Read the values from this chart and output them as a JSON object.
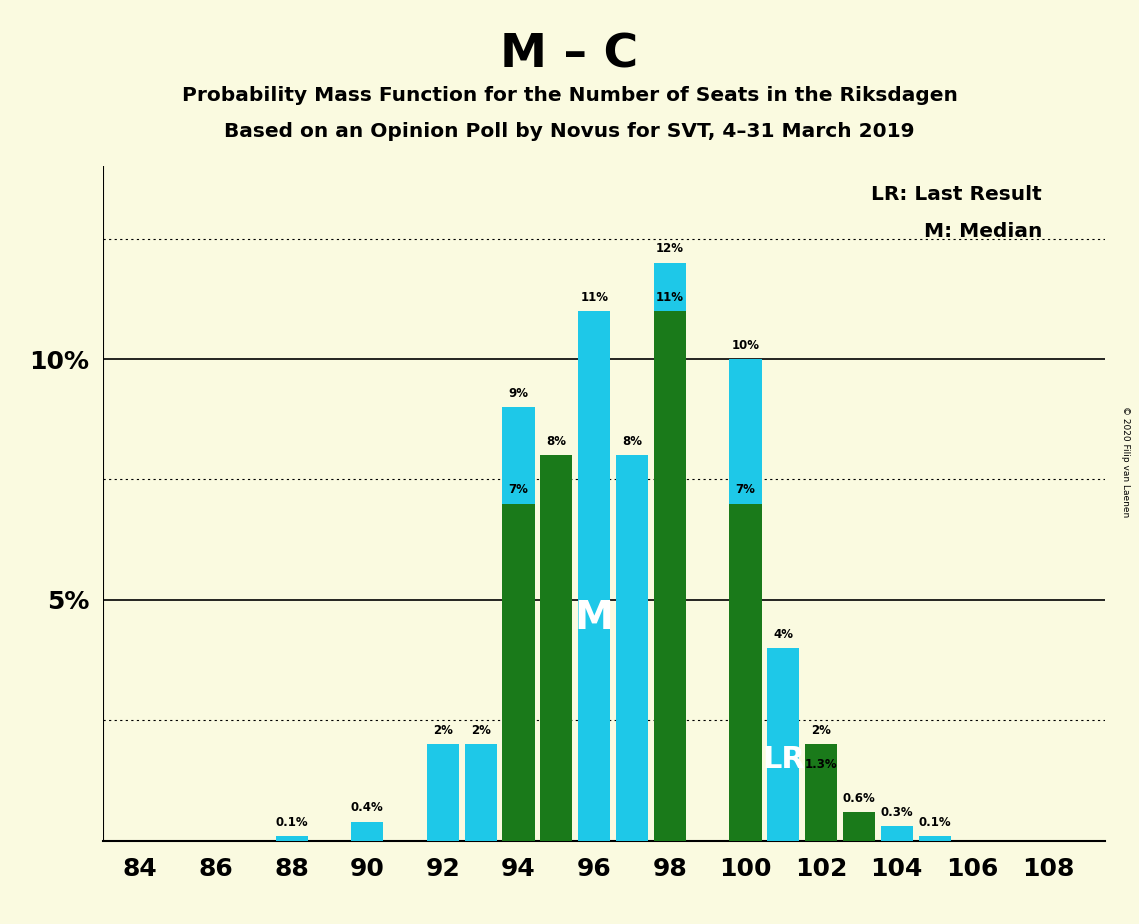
{
  "title": "M – C",
  "subtitle1": "Probability Mass Function for the Number of Seats in the Riksdagen",
  "subtitle2": "Based on an Opinion Poll by Novus for SVT, 4–31 March 2019",
  "copyright": "© 2020 Filip van Laenen",
  "legend1": "LR: Last Result",
  "legend2": "M: Median",
  "median_seat": 96,
  "lr_seat": 101,
  "cyan_seats": [
    84,
    86,
    88,
    90,
    92,
    93,
    94,
    96,
    97,
    98,
    100,
    101,
    102,
    104,
    105,
    106,
    108
  ],
  "cyan_values": [
    0.0,
    0.0,
    0.1,
    0.4,
    2.0,
    2.0,
    9.0,
    11.0,
    8.0,
    12.0,
    10.0,
    4.0,
    1.3,
    0.3,
    0.1,
    0.0,
    0.0
  ],
  "green_seats": [
    84,
    86,
    88,
    90,
    91,
    92,
    94,
    95,
    96,
    98,
    99,
    100,
    102,
    103,
    104,
    106,
    107,
    108
  ],
  "green_values": [
    0.0,
    0.0,
    0.0,
    0.0,
    0.0,
    0.0,
    7.0,
    8.0,
    0.0,
    11.0,
    0.0,
    7.0,
    2.0,
    0.6,
    0.0,
    0.0,
    0.0,
    0.0
  ],
  "cyan_color": "#1EC8E8",
  "green_color": "#1A7A1A",
  "background_color": "#FAFAE0",
  "xtick_labels": [
    84,
    86,
    88,
    90,
    92,
    94,
    96,
    98,
    100,
    102,
    104,
    106,
    108
  ],
  "solid_yticks": [
    5.0,
    10.0
  ],
  "dotted_yticks": [
    2.5,
    7.5,
    12.5
  ],
  "ylim_max": 14.0,
  "bar_width": 0.85
}
